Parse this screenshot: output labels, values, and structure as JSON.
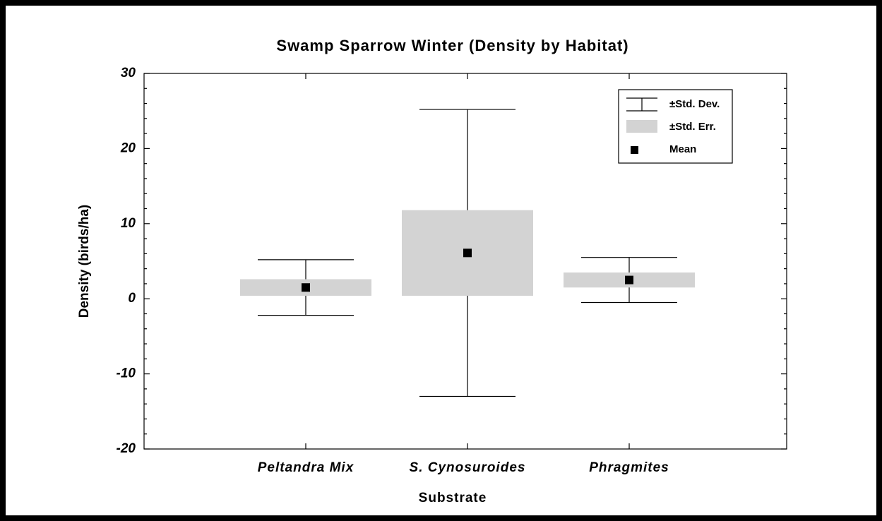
{
  "chart_data": {
    "type": "box",
    "title": "Swamp Sparrow Winter (Density by Habitat)",
    "x_label": "Substrate",
    "y_label": "Density (birds/ha)",
    "categories": [
      "Peltandra Mix",
      "S. Cynosuroides",
      "Phragmites"
    ],
    "mean": [
      1.5,
      6.1,
      2.5
    ],
    "se": [
      1.1,
      5.7,
      1.0
    ],
    "sd": [
      3.7,
      19.1,
      3.0
    ],
    "ylim": [
      -20,
      30
    ],
    "yticks": [
      -20,
      -10,
      0,
      10,
      20,
      30
    ],
    "legend": {
      "sd": "±Std. Dev.",
      "se": "±Std. Err.",
      "mean": "Mean"
    },
    "legend_position": "upper right",
    "colors": {
      "mean": "#000000",
      "se": "#d3d3d3",
      "sd": "#000000"
    }
  }
}
